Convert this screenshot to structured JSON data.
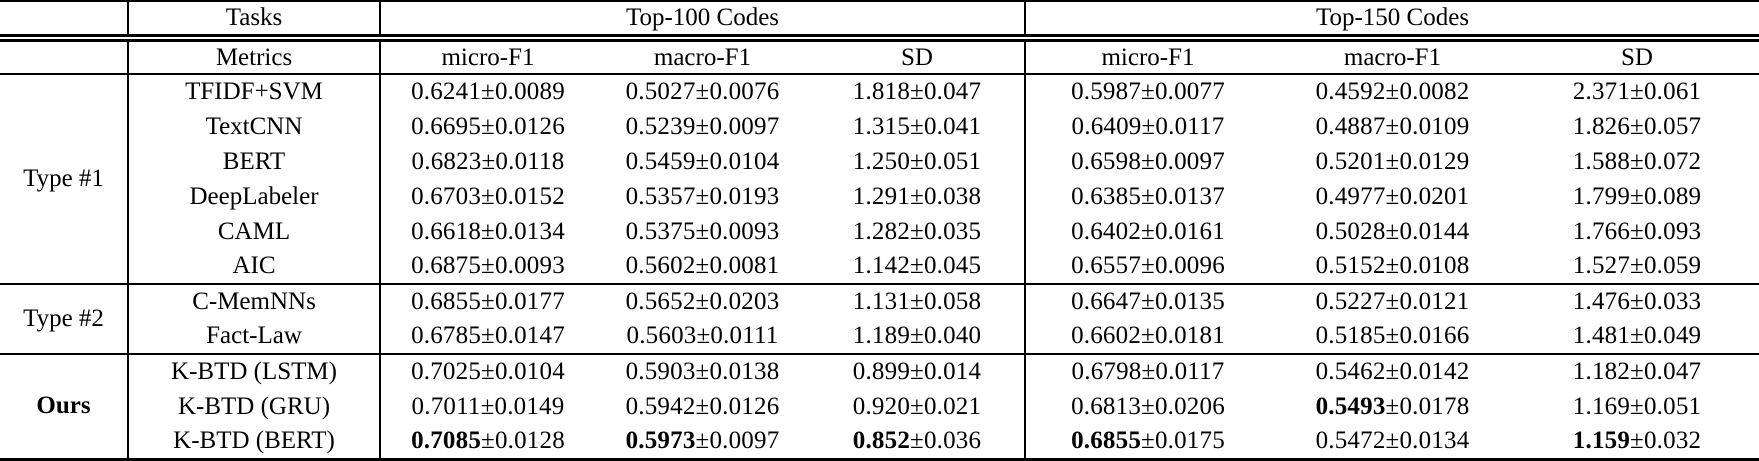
{
  "table": {
    "header": {
      "tasks_label": "Tasks",
      "metrics_label": "Metrics",
      "top100_label": "Top-100 Codes",
      "top150_label": "Top-150 Codes",
      "columns": [
        "micro-F1",
        "macro-F1",
        "SD",
        "micro-F1",
        "macro-F1",
        "SD"
      ]
    },
    "colors": {
      "text": "#000000",
      "background": "#ffffff",
      "rule": "#000000"
    },
    "groups": [
      {
        "label": "Type #1",
        "bold": false,
        "rows": [
          {
            "method": "TFIDF+SVM",
            "cells": [
              {
                "v": "0.6241",
                "pm": "±0.0089",
                "bold": false
              },
              {
                "v": "0.5027",
                "pm": "±0.0076",
                "bold": false
              },
              {
                "v": "1.818",
                "pm": "±0.047",
                "bold": false
              },
              {
                "v": "0.5987",
                "pm": "±0.0077",
                "bold": false
              },
              {
                "v": "0.4592",
                "pm": "±0.0082",
                "bold": false
              },
              {
                "v": "2.371",
                "pm": "±0.061",
                "bold": false
              }
            ]
          },
          {
            "method": "TextCNN",
            "cells": [
              {
                "v": "0.6695",
                "pm": "±0.0126",
                "bold": false
              },
              {
                "v": "0.5239",
                "pm": "±0.0097",
                "bold": false
              },
              {
                "v": "1.315",
                "pm": "±0.041",
                "bold": false
              },
              {
                "v": "0.6409",
                "pm": "±0.0117",
                "bold": false
              },
              {
                "v": "0.4887",
                "pm": "±0.0109",
                "bold": false
              },
              {
                "v": "1.826",
                "pm": "±0.057",
                "bold": false
              }
            ]
          },
          {
            "method": "BERT",
            "cells": [
              {
                "v": "0.6823",
                "pm": "±0.0118",
                "bold": false
              },
              {
                "v": "0.5459",
                "pm": "±0.0104",
                "bold": false
              },
              {
                "v": "1.250",
                "pm": "±0.051",
                "bold": false
              },
              {
                "v": "0.6598",
                "pm": "±0.0097",
                "bold": false
              },
              {
                "v": "0.5201",
                "pm": "±0.0129",
                "bold": false
              },
              {
                "v": "1.588",
                "pm": "±0.072",
                "bold": false
              }
            ]
          },
          {
            "method": "DeepLabeler",
            "cells": [
              {
                "v": "0.6703",
                "pm": "±0.0152",
                "bold": false
              },
              {
                "v": "0.5357",
                "pm": "±0.0193",
                "bold": false
              },
              {
                "v": "1.291",
                "pm": "±0.038",
                "bold": false
              },
              {
                "v": "0.6385",
                "pm": "±0.0137",
                "bold": false
              },
              {
                "v": "0.4977",
                "pm": "±0.0201",
                "bold": false
              },
              {
                "v": "1.799",
                "pm": "±0.089",
                "bold": false
              }
            ]
          },
          {
            "method": "CAML",
            "cells": [
              {
                "v": "0.6618",
                "pm": "±0.0134",
                "bold": false
              },
              {
                "v": "0.5375",
                "pm": "±0.0093",
                "bold": false
              },
              {
                "v": "1.282",
                "pm": "±0.035",
                "bold": false
              },
              {
                "v": "0.6402",
                "pm": "±0.0161",
                "bold": false
              },
              {
                "v": "0.5028",
                "pm": "±0.0144",
                "bold": false
              },
              {
                "v": "1.766",
                "pm": "±0.093",
                "bold": false
              }
            ]
          },
          {
            "method": "AIC",
            "cells": [
              {
                "v": "0.6875",
                "pm": "±0.0093",
                "bold": false
              },
              {
                "v": "0.5602",
                "pm": "±0.0081",
                "bold": false
              },
              {
                "v": "1.142",
                "pm": "±0.045",
                "bold": false
              },
              {
                "v": "0.6557",
                "pm": "±0.0096",
                "bold": false
              },
              {
                "v": "0.5152",
                "pm": "±0.0108",
                "bold": false
              },
              {
                "v": "1.527",
                "pm": "±0.059",
                "bold": false
              }
            ]
          }
        ]
      },
      {
        "label": "Type #2",
        "bold": false,
        "rows": [
          {
            "method": "C-MemNNs",
            "cells": [
              {
                "v": "0.6855",
                "pm": "±0.0177",
                "bold": false
              },
              {
                "v": "0.5652",
                "pm": "±0.0203",
                "bold": false
              },
              {
                "v": "1.131",
                "pm": "±0.058",
                "bold": false
              },
              {
                "v": "0.6647",
                "pm": "±0.0135",
                "bold": false
              },
              {
                "v": "0.5227",
                "pm": "±0.0121",
                "bold": false
              },
              {
                "v": "1.476",
                "pm": "±0.033",
                "bold": false
              }
            ]
          },
          {
            "method": "Fact-Law",
            "cells": [
              {
                "v": "0.6785",
                "pm": "±0.0147",
                "bold": false
              },
              {
                "v": "0.5603",
                "pm": "±0.0111",
                "bold": false
              },
              {
                "v": "1.189",
                "pm": "±0.040",
                "bold": false
              },
              {
                "v": "0.6602",
                "pm": "±0.0181",
                "bold": false
              },
              {
                "v": "0.5185",
                "pm": "±0.0166",
                "bold": false
              },
              {
                "v": "1.481",
                "pm": "±0.049",
                "bold": false
              }
            ]
          }
        ]
      },
      {
        "label": "Ours",
        "bold": true,
        "rows": [
          {
            "method": "K-BTD (LSTM)",
            "cells": [
              {
                "v": "0.7025",
                "pm": "±0.0104",
                "bold": false
              },
              {
                "v": "0.5903",
                "pm": "±0.0138",
                "bold": false
              },
              {
                "v": "0.899",
                "pm": "±0.014",
                "bold": false
              },
              {
                "v": "0.6798",
                "pm": "±0.0117",
                "bold": false
              },
              {
                "v": "0.5462",
                "pm": "±0.0142",
                "bold": false
              },
              {
                "v": "1.182",
                "pm": "±0.047",
                "bold": false
              }
            ]
          },
          {
            "method": "K-BTD (GRU)",
            "cells": [
              {
                "v": "0.7011",
                "pm": "±0.0149",
                "bold": false
              },
              {
                "v": "0.5942",
                "pm": "±0.0126",
                "bold": false
              },
              {
                "v": "0.920",
                "pm": "±0.021",
                "bold": false
              },
              {
                "v": "0.6813",
                "pm": "±0.0206",
                "bold": false
              },
              {
                "v": "0.5493",
                "pm": "±0.0178",
                "bold": true
              },
              {
                "v": "1.169",
                "pm": "±0.051",
                "bold": false
              }
            ]
          },
          {
            "method": "K-BTD (BERT)",
            "cells": [
              {
                "v": "0.7085",
                "pm": "±0.0128",
                "bold": true
              },
              {
                "v": "0.5973",
                "pm": "±0.0097",
                "bold": true
              },
              {
                "v": "0.852",
                "pm": "±0.036",
                "bold": true
              },
              {
                "v": "0.6855",
                "pm": "±0.0175",
                "bold": true
              },
              {
                "v": "0.5472",
                "pm": "±0.0134",
                "bold": false
              },
              {
                "v": "1.159",
                "pm": "±0.032",
                "bold": true
              }
            ]
          }
        ]
      }
    ]
  }
}
